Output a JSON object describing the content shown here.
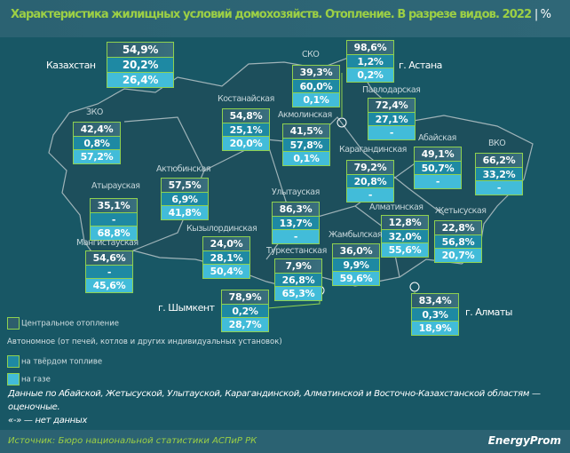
{
  "header": {
    "title": "Характеристика жилищных условий домохозяйств. Отопление. В разрезе видов. 2022",
    "unit": "%"
  },
  "regions": [
    {
      "name": "Казахстан",
      "values": [
        "54,9%",
        "20,2%",
        "26,4%"
      ]
    },
    {
      "name": "г. Астана",
      "values": [
        "98,6%",
        "1,2%",
        "0,2%"
      ]
    },
    {
      "name": "СКО",
      "values": [
        "39,3%",
        "60,0%",
        "0,1%"
      ]
    },
    {
      "name": "Павлодарская",
      "values": [
        "72,4%",
        "27,1%",
        "-"
      ]
    },
    {
      "name": "ЗКО",
      "values": [
        "42,4%",
        "0,8%",
        "57,2%"
      ]
    },
    {
      "name": "Костанайская",
      "values": [
        "54,8%",
        "25,1%",
        "20,0%"
      ]
    },
    {
      "name": "Акмолинская",
      "values": [
        "41,5%",
        "57,8%",
        "0,1%"
      ]
    },
    {
      "name": "Абайская",
      "values": [
        "49,1%",
        "50,7%",
        "-"
      ]
    },
    {
      "name": "ВКО",
      "values": [
        "66,2%",
        "33,2%",
        "-"
      ]
    },
    {
      "name": "Карагандинская",
      "values": [
        "79,2%",
        "20,8%",
        "-"
      ]
    },
    {
      "name": "Актюбинская",
      "values": [
        "57,5%",
        "6,9%",
        "41,8%"
      ]
    },
    {
      "name": "Атырауская",
      "values": [
        "35,1%",
        "-",
        "68,8%"
      ]
    },
    {
      "name": "Улытауская",
      "values": [
        "86,3%",
        "13,7%",
        "-"
      ]
    },
    {
      "name": "Алматинская",
      "values": [
        "12,8%",
        "32,0%",
        "55,6%"
      ]
    },
    {
      "name": "Жетысуская",
      "values": [
        "22,8%",
        "56,8%",
        "20,7%"
      ]
    },
    {
      "name": "Кызылординская",
      "values": [
        "24,0%",
        "28,1%",
        "50,4%"
      ]
    },
    {
      "name": "Мангистауская",
      "values": [
        "54,6%",
        "-",
        "45,6%"
      ]
    },
    {
      "name": "Туркестанская",
      "values": [
        "7,9%",
        "26,8%",
        "65,3%"
      ]
    },
    {
      "name": "Жамбылская",
      "values": [
        "36,0%",
        "9,9%",
        "59,6%"
      ]
    },
    {
      "name": "г. Шымкент",
      "values": [
        "78,9%",
        "0,2%",
        "28,7%"
      ]
    },
    {
      "name": "г. Алматы",
      "values": [
        "83,4%",
        "0,3%",
        "18,9%"
      ]
    }
  ],
  "legend": {
    "central": "Центральное отопление",
    "autonomous": "Автономное (от печей, котлов и других индивидуальных установок)",
    "solid": "на твёрдом топливе",
    "gas": "на газе"
  },
  "note": {
    "line1": "Данные по Абайской, Жетысуской, Улытауской, Карагандинской, Алматинской и Восточно-Казахстанской областям — оценочные.",
    "line2": "«-» — нет данных"
  },
  "footer": {
    "source": "Источник: Бюро национальной статистики АСПиР РК",
    "logo": "EnergyProm"
  },
  "colors": {
    "central": "#2d5d6c",
    "solid": "#1e89a3",
    "gas": "#42bcd9",
    "border": "#8fd14f",
    "title": "#9ccf45"
  }
}
